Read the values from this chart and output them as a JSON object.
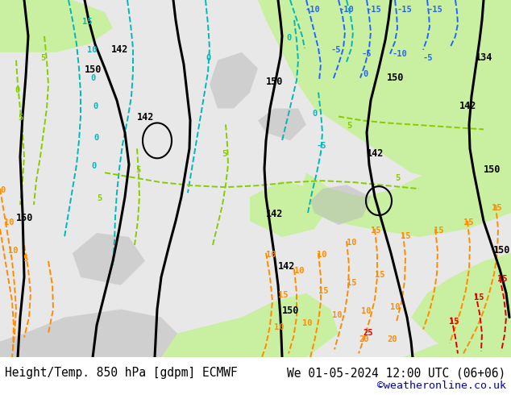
{
  "title_left": "Height/Temp. 850 hPa [gdpm] ECMWF",
  "title_right": "We 01-05-2024 12:00 UTC (06+06)",
  "copyright": "©weatheronline.co.uk",
  "copyright_color": "#0000cc",
  "title_color": "#000000",
  "title_fontsize": 10.5,
  "copyright_fontsize": 9.5,
  "fig_width": 6.34,
  "fig_height": 4.9,
  "dpi": 100,
  "bg_map": "#e8e8e8",
  "green_warm": "#c8f0a0",
  "gray_land": "#b8b8b8",
  "teal": "#00b8b8",
  "lime": "#88cc00",
  "orange": "#ff8c00",
  "blue": "#2266ff",
  "red": "#dd0000",
  "black": "#000000"
}
